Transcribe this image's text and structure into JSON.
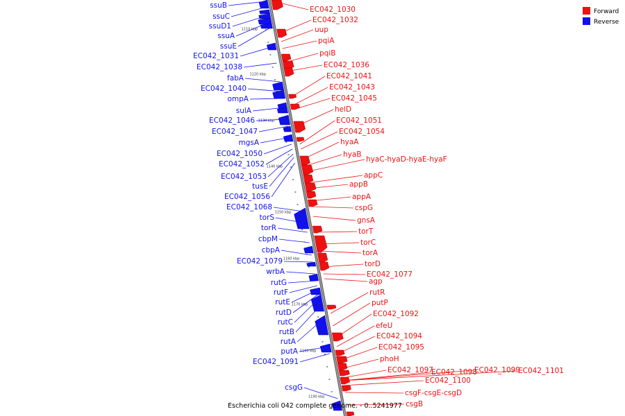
{
  "legend": {
    "forward_label": "Forward",
    "reverse_label": "Reverse",
    "forward_color": "#ee1111",
    "reverse_color": "#1111ee"
  },
  "caption": "Escherichia coli 042 complete genome. - 0..5241977",
  "colors": {
    "forward": "#ee1111",
    "reverse": "#1111ee",
    "backbone": "#999999"
  },
  "ticks": [
    "1110 kbp",
    "1120 kbp",
    "1130 kbp",
    "1140 kbp",
    "1150 kbp",
    "1160 kbp",
    "1170 kbp",
    "1180 kbp",
    "1190 kbp"
  ],
  "reverse_genes": [
    "ssuB",
    "ssuC",
    "ssuD1",
    "ssuA",
    "ssuE",
    "EC042_1031",
    "EC042_1038",
    "fabA",
    "EC042_1040",
    "ompA",
    "sulA",
    "EC042_1046",
    "EC042_1047",
    "mgsA",
    "EC042_1050",
    "EC042_1052",
    "EC042_1053",
    "tusE",
    "EC042_1056",
    "EC042_1068",
    "torS",
    "torR",
    "cbpM",
    "cbpA",
    "EC042_1079",
    "wrbA",
    "rutG",
    "rutF",
    "rutE",
    "rutD",
    "rutC",
    "rutB",
    "rutA",
    "putA",
    "EC042_1091",
    "csgG"
  ],
  "forward_genes": [
    "EC042_1030",
    "EC042_1032",
    "uup",
    "pqiA",
    "pqiB",
    "EC042_1036",
    "EC042_1041",
    "EC042_1043",
    "EC042_1045",
    "helD",
    "EC042_1051",
    "EC042_1054",
    "hyaA",
    "hyaB",
    "hyaC-hyaD-hyaE-hyaF",
    "appC",
    "appB",
    "appA",
    "cspG",
    "gnsA",
    "torT",
    "torC",
    "torA",
    "torD",
    "EC042_1077",
    "agp",
    "rutR",
    "putP",
    "EC042_1092",
    "efeU",
    "EC042_1094",
    "EC042_1095",
    "phoH",
    "EC042_1097",
    "EC042_1098",
    "EC042_1099",
    "EC042_1101",
    "EC042_1100",
    "csgF-csgE-csgD",
    "csgB"
  ]
}
